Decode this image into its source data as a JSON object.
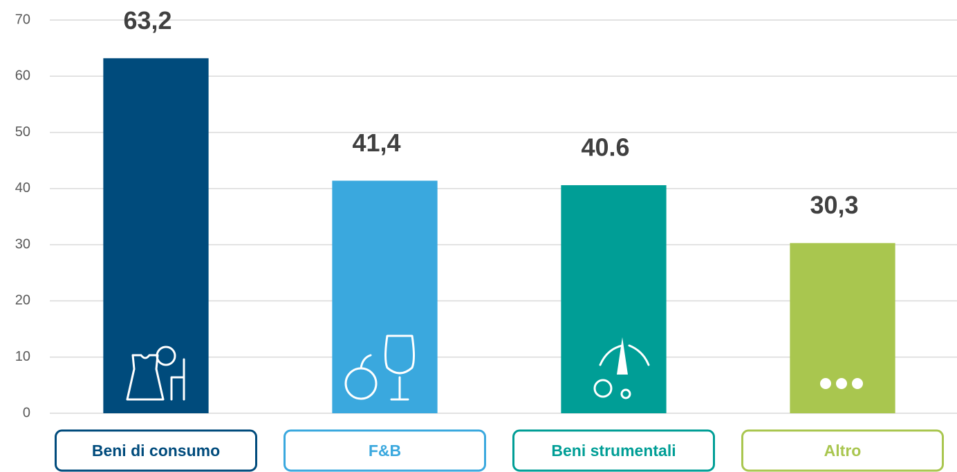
{
  "chart_data": {
    "type": "bar",
    "categories": [
      "Beni di consumo",
      "F&B",
      "Beni strumentali",
      "Altro"
    ],
    "values": [
      63.2,
      41.4,
      40.6,
      30.3
    ],
    "value_labels": [
      "63,2",
      "41,4",
      "40.6",
      "30,3"
    ],
    "colors": [
      "#004b7c",
      "#3aa8de",
      "#009e96",
      "#a9c64f"
    ],
    "ylim": [
      0,
      70
    ],
    "yticks": [
      0,
      10,
      20,
      30,
      40,
      50,
      60,
      70
    ],
    "grid": true
  }
}
